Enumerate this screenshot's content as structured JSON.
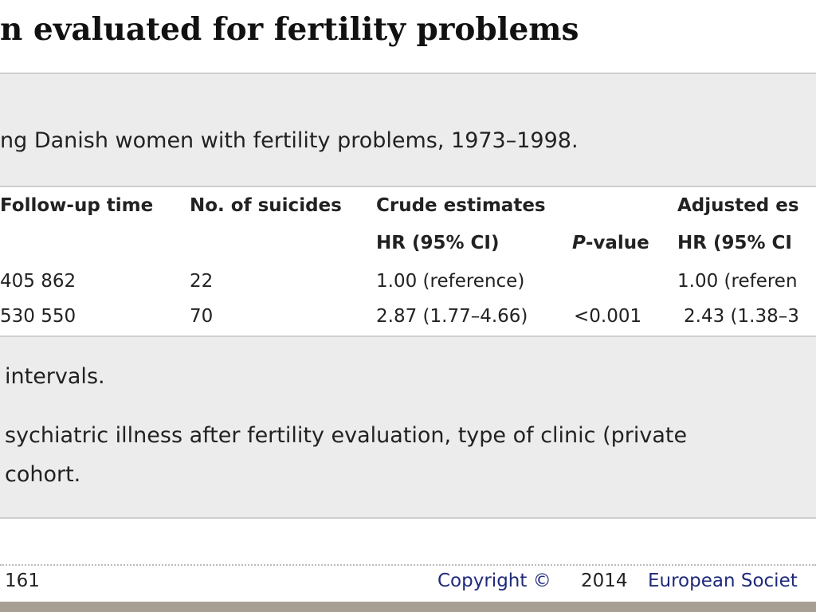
{
  "title": "n evaluated for fertility problems",
  "caption": "ng Danish women with fertility problems, 1973–1998.",
  "table": {
    "header_row1": [
      "Follow-up time",
      "No. of suicides",
      "Crude estimates",
      "Adjusted es"
    ],
    "header_row2": {
      "crude_hr": "HR (95% CI)",
      "p_italic": "P",
      "p_rest": "-value",
      "adjusted_hr": "HR (95% CI"
    },
    "rows": [
      [
        "405 862",
        "22",
        "1.00 (reference)",
        "",
        "1.00 (referen"
      ],
      [
        "530 550",
        "70",
        "2.87 (1.77–4.66)",
        "<0.001",
        "2.43 (1.38–3"
      ]
    ]
  },
  "footnotes": [
    "intervals.",
    "sychiatric illness after fertility evaluation, type of clinic (private",
    "cohort."
  ],
  "footer": {
    "page": "161",
    "copyright": "Copyright ©",
    "year": "2014",
    "publisher": "European Societ"
  }
}
